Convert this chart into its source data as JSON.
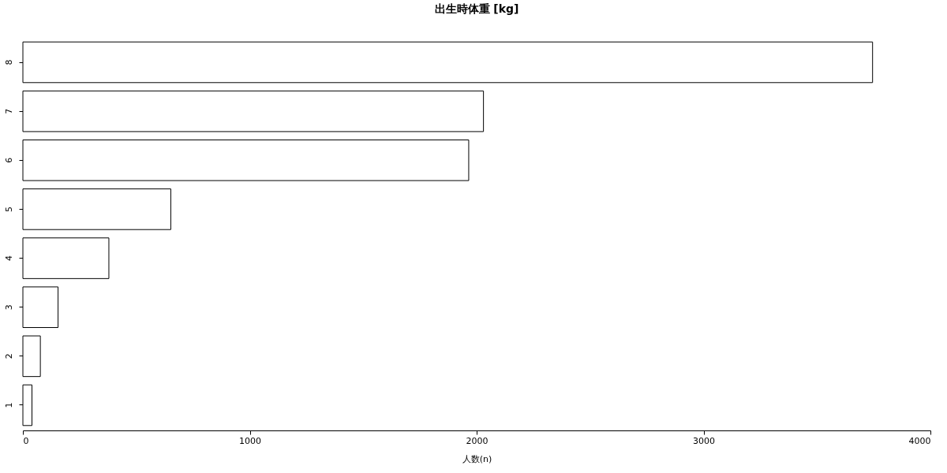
{
  "chart_data": {
    "type": "bar",
    "orientation": "horizontal",
    "title": "出生時体重 [kg]",
    "xlabel": "人数(n)",
    "categories": [
      "8",
      "7",
      "6",
      "5",
      "4",
      "3",
      "2",
      "1"
    ],
    "values": [
      3745,
      2030,
      1965,
      652,
      379,
      155,
      77,
      40
    ],
    "color": "#ffffff",
    "xlim": [
      0,
      4000
    ],
    "xticks": [
      0,
      1000,
      2000,
      3000,
      4000
    ],
    "grid": false
  }
}
